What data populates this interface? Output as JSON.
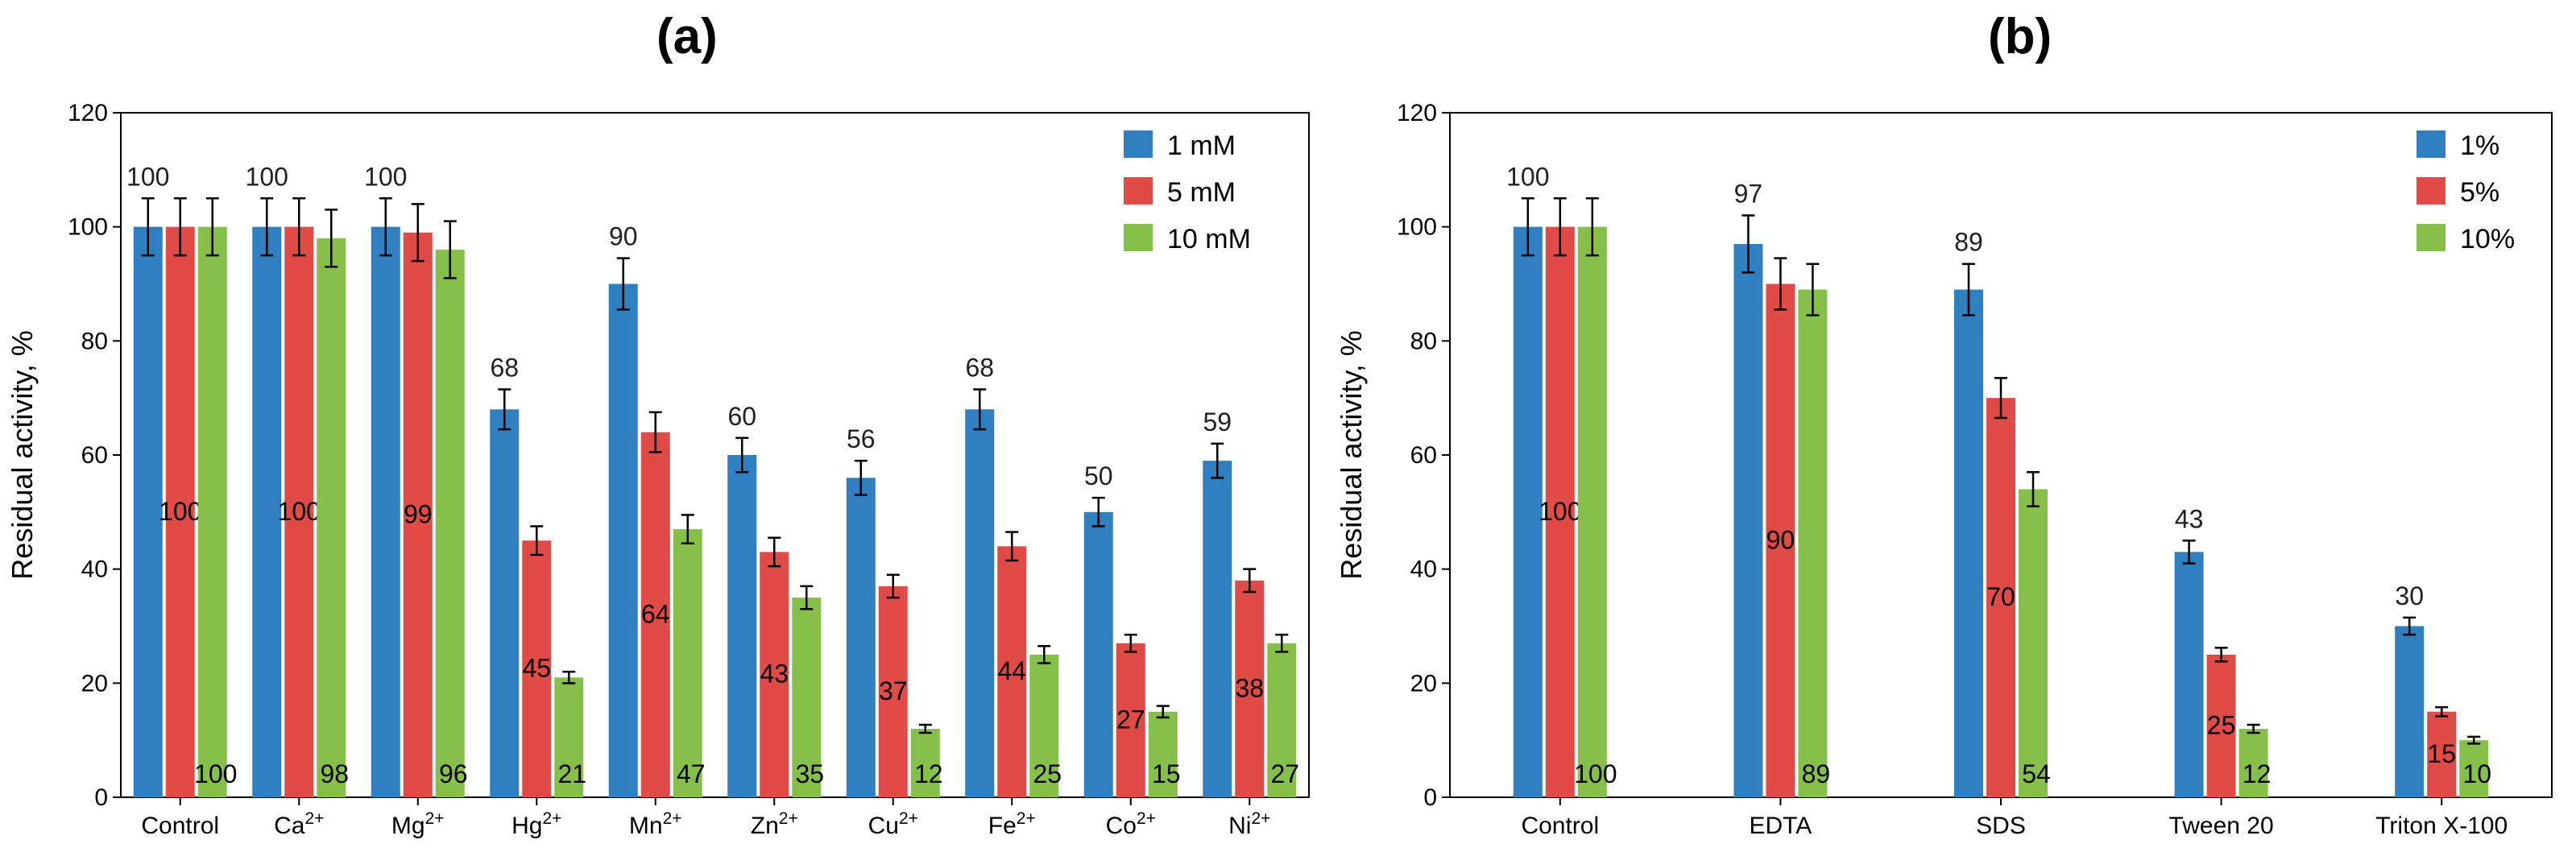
{
  "colors": {
    "s1": "#2f7fc1",
    "s2": "#e04a47",
    "s3": "#86c04b",
    "axis": "#000000",
    "err": "#000000"
  },
  "chart_data": [
    {
      "panel_label": "(a)",
      "type": "bar",
      "ylabel": "Residual activity, %",
      "ylim": [
        0,
        120
      ],
      "yticks": [
        "0",
        "20",
        "40",
        "60",
        "80",
        "100",
        "120"
      ],
      "categories": [
        {
          "base": "Control",
          "sup": ""
        },
        {
          "base": "Ca",
          "sup": "2+"
        },
        {
          "base": "Mg",
          "sup": "2+"
        },
        {
          "base": "Hg",
          "sup": "2+"
        },
        {
          "base": "Mn",
          "sup": "2+"
        },
        {
          "base": "Zn",
          "sup": "2+"
        },
        {
          "base": "Cu",
          "sup": "2+"
        },
        {
          "base": "Fe",
          "sup": "2+"
        },
        {
          "base": "Co",
          "sup": "2+"
        },
        {
          "base": "Ni",
          "sup": "2+"
        }
      ],
      "series": [
        {
          "name": "1 mM",
          "values": [
            100,
            100,
            100,
            68,
            90,
            60,
            56,
            68,
            50,
            59
          ],
          "errors": [
            5,
            5,
            5,
            3.5,
            4.5,
            3,
            3,
            3.5,
            2.5,
            3
          ]
        },
        {
          "name": "5 mM",
          "values": [
            100,
            100,
            99,
            45,
            64,
            43,
            37,
            44,
            27,
            38
          ],
          "errors": [
            5,
            5,
            5,
            2.5,
            3.5,
            2.5,
            2,
            2.5,
            1.5,
            2
          ]
        },
        {
          "name": "10 mM",
          "values": [
            100,
            98,
            96,
            21,
            47,
            35,
            12,
            25,
            15,
            27
          ],
          "errors": [
            5,
            5,
            5,
            1,
            2.5,
            2,
            0.7,
            1.5,
            1,
            1.5
          ]
        }
      ],
      "legend": "top-right"
    },
    {
      "panel_label": "(b)",
      "type": "bar",
      "ylabel": "Residual activity, %",
      "ylim": [
        0,
        120
      ],
      "yticks": [
        "0",
        "20",
        "40",
        "60",
        "80",
        "100",
        "120"
      ],
      "categories": [
        {
          "base": "Control",
          "sup": ""
        },
        {
          "base": "EDTA",
          "sup": ""
        },
        {
          "base": "SDS",
          "sup": ""
        },
        {
          "base": "Tween 20",
          "sup": ""
        },
        {
          "base": "Triton X-100",
          "sup": ""
        }
      ],
      "series": [
        {
          "name": "1%",
          "values": [
            100,
            97,
            89,
            43,
            30
          ],
          "errors": [
            5,
            5,
            4.5,
            2,
            1.5
          ]
        },
        {
          "name": "5%",
          "values": [
            100,
            90,
            70,
            25,
            15
          ],
          "errors": [
            5,
            4.5,
            3.5,
            1.2,
            0.8
          ]
        },
        {
          "name": "10%",
          "values": [
            100,
            89,
            54,
            12,
            10
          ],
          "errors": [
            5,
            4.5,
            3,
            0.7,
            0.6
          ]
        }
      ],
      "legend": "top-right"
    }
  ]
}
